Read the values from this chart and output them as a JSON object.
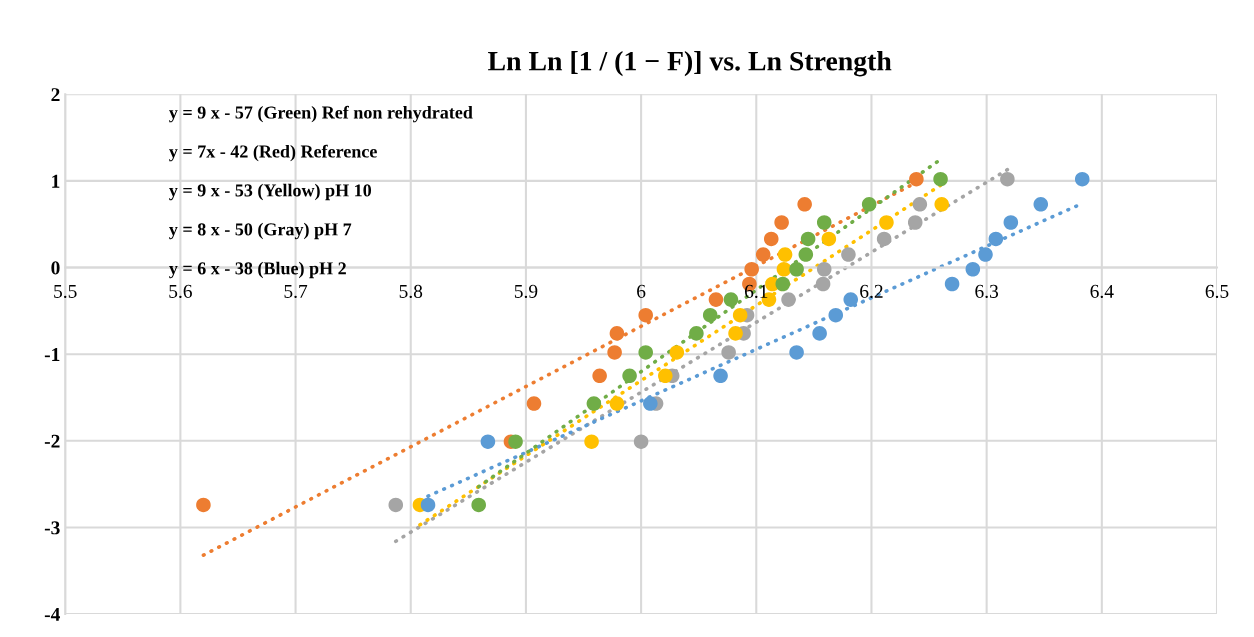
{
  "chart_data": {
    "type": "scatter",
    "title": "Ln Ln [1 / (1 − F)] vs. Ln Strength",
    "xlim": [
      5.5,
      6.5
    ],
    "xticks": [
      5.5,
      5.6,
      5.7,
      5.8,
      5.9,
      6,
      6.1,
      6.2,
      6.3,
      6.4,
      6.5
    ],
    "ylim": [
      -4,
      2
    ],
    "yticks": [
      -4,
      -3,
      -2,
      -1,
      0,
      1,
      2
    ],
    "grid": true,
    "annotations": [
      "y = 9 x - 57 (Green) Ref non rehydrated",
      "y = 7x - 42 (Red) Reference",
      "y = 9 x - 53 (Yellow) pH 10",
      "y = 8 x - 50 (Gray) pH 7",
      "y = 6 x - 38 (Blue) pH 2"
    ],
    "series": [
      {
        "marker": "circle",
        "color": "#ed7d31",
        "x": [
          6.239,
          6.142,
          6.122,
          6.113,
          6.106,
          6.096,
          6.094,
          6.065,
          6.004,
          5.979,
          5.977,
          5.964,
          5.907,
          5.887,
          5.62
        ],
        "values": [
          1.02,
          0.73,
          0.52,
          0.33,
          0.15,
          -0.02,
          -0.19,
          -0.37,
          -0.55,
          -0.76,
          -0.98,
          -1.25,
          -1.57,
          -2.01,
          -2.74
        ]
      },
      {
        "marker": "circle",
        "color": "#a5a5a5",
        "x": [
          6.318,
          6.242,
          6.238,
          6.211,
          6.18,
          6.159,
          6.158,
          6.128,
          6.092,
          6.089,
          6.076,
          6.027,
          6.013,
          6.0,
          5.787
        ],
        "values": [
          1.02,
          0.73,
          0.52,
          0.33,
          0.15,
          -0.02,
          -0.19,
          -0.37,
          -0.55,
          -0.76,
          -0.98,
          -1.25,
          -1.57,
          -2.01,
          -2.74
        ]
      },
      {
        "marker": "circle",
        "color": "#ffc000",
        "x": [
          null,
          6.261,
          6.213,
          6.163,
          6.125,
          6.124,
          6.114,
          6.111,
          6.086,
          6.082,
          6.031,
          6.021,
          5.979,
          5.957,
          5.808
        ],
        "values": [
          null,
          0.73,
          0.52,
          0.33,
          0.15,
          -0.02,
          -0.19,
          -0.37,
          -0.55,
          -0.76,
          -0.98,
          -1.25,
          -1.57,
          -2.01,
          -2.74
        ]
      },
      {
        "marker": "circle",
        "color": "#5b9bd5",
        "x": [
          6.383,
          6.347,
          6.321,
          6.308,
          6.299,
          6.288,
          6.27,
          6.182,
          6.169,
          6.155,
          6.135,
          6.069,
          6.008,
          5.867,
          5.815
        ],
        "values": [
          1.02,
          0.73,
          0.52,
          0.33,
          0.15,
          -0.02,
          -0.19,
          -0.37,
          -0.55,
          -0.76,
          -0.98,
          -1.25,
          -1.57,
          -2.01,
          -2.74
        ]
      },
      {
        "marker": "circle",
        "color": "#70ad47",
        "x": [
          6.26,
          6.198,
          6.159,
          6.145,
          6.143,
          6.135,
          6.123,
          6.078,
          6.06,
          6.048,
          6.004,
          5.99,
          5.959,
          5.891,
          5.859
        ],
        "values": [
          1.02,
          0.73,
          0.52,
          0.33,
          0.15,
          -0.02,
          -0.19,
          -0.37,
          -0.55,
          -0.76,
          -0.98,
          -1.25,
          -1.57,
          -2.01,
          -2.74
        ]
      },
      {
        "type": "line",
        "line_style": "dotted",
        "color": "#ed7d31",
        "x": [
          5.62,
          6.24
        ],
        "values": [
          -3.32,
          0.99
        ]
      },
      {
        "type": "line",
        "line_style": "dotted",
        "color": "#a5a5a5",
        "x": [
          5.787,
          6.318
        ],
        "values": [
          -3.16,
          1.13
        ]
      },
      {
        "type": "line",
        "line_style": "dotted",
        "color": "#ffc000",
        "x": [
          5.808,
          6.26
        ],
        "values": [
          -2.97,
          0.95
        ]
      },
      {
        "type": "line",
        "line_style": "dotted",
        "color": "#5b9bd5",
        "x": [
          5.815,
          6.378
        ],
        "values": [
          -2.64,
          0.71
        ]
      },
      {
        "type": "line",
        "line_style": "dotted",
        "color": "#70ad47",
        "x": [
          5.859,
          6.257
        ],
        "values": [
          -2.53,
          1.22
        ]
      }
    ]
  }
}
